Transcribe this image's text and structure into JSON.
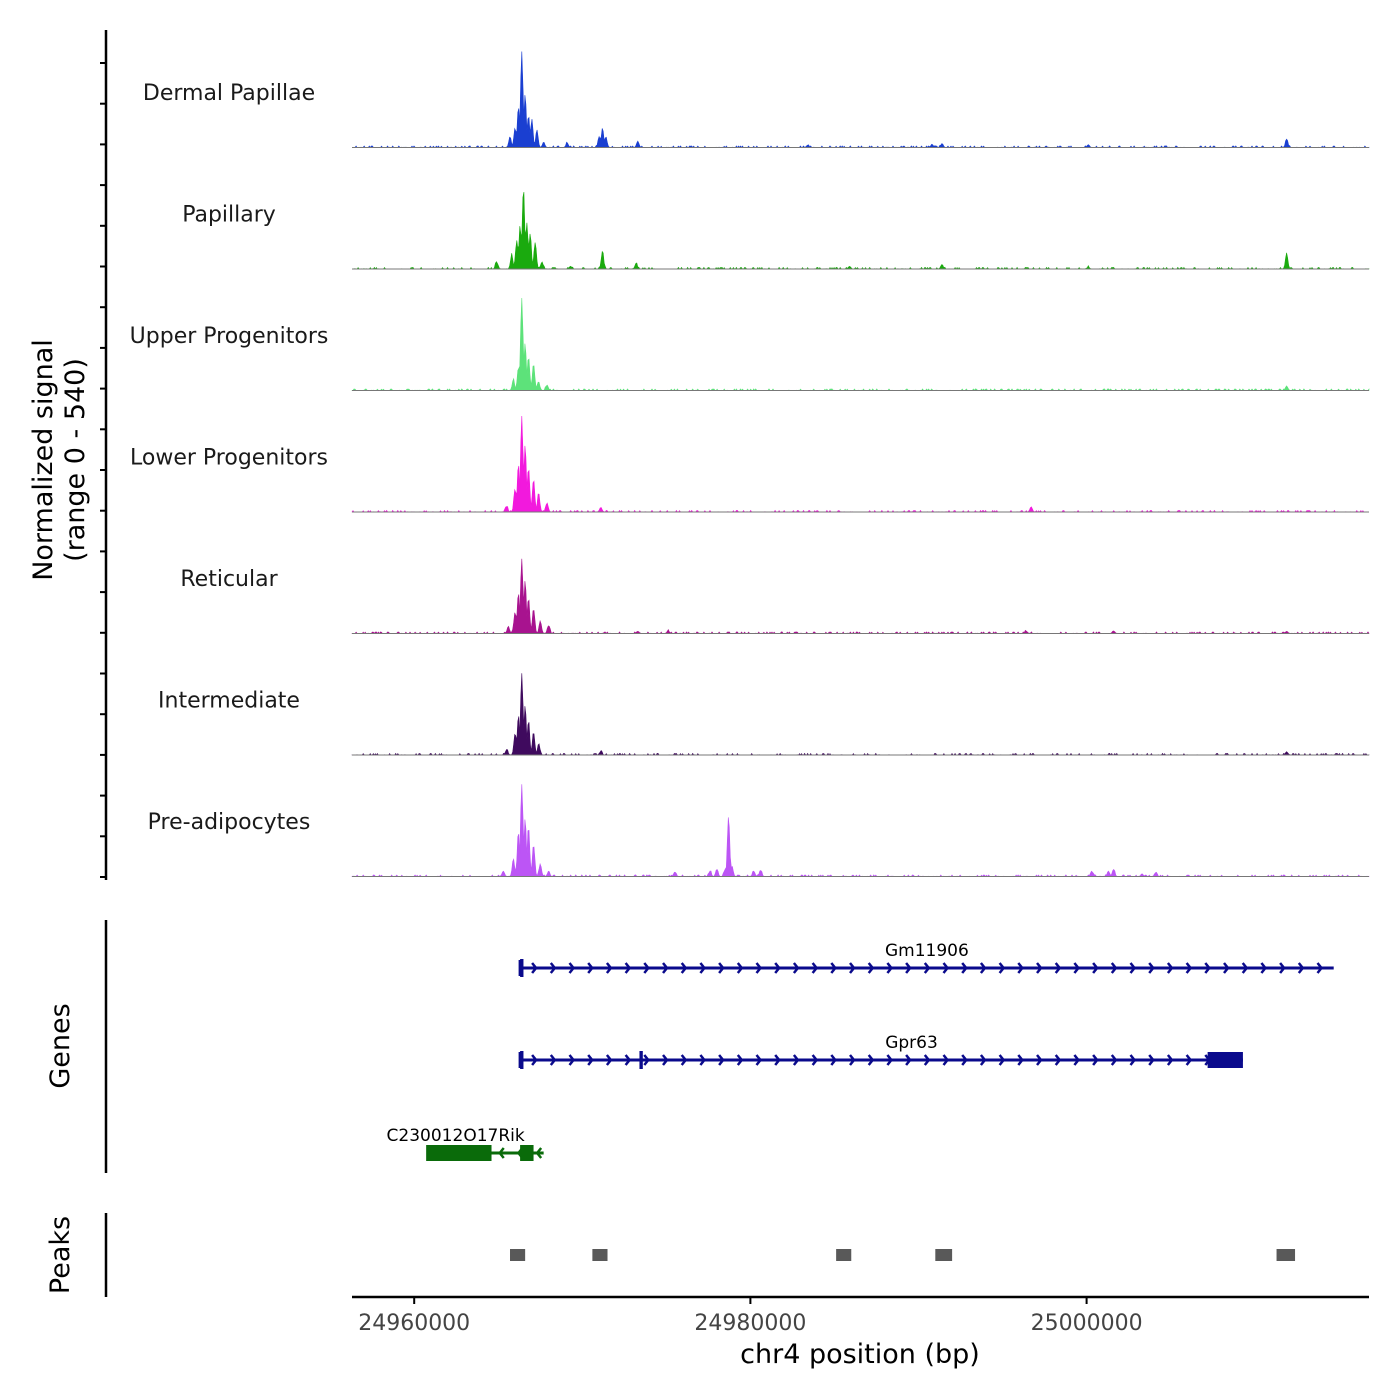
{
  "chart_data": {
    "type": "area",
    "title": "",
    "chromosome": "chr4",
    "xlabel": "chr4 position (bp)",
    "xlim": [
      24956300,
      25016800
    ],
    "xticks": [
      {
        "value": 24960000,
        "label": "24960000"
      },
      {
        "value": 24980000,
        "label": "24980000"
      },
      {
        "value": 25000000,
        "label": "25000000"
      }
    ],
    "signal_panel": {
      "ylabel_line1": "Normalized signal",
      "ylabel_line2": "(range 0 - 540)",
      "ylim": [
        0,
        540
      ],
      "tracks": [
        {
          "name": "Dermal Papillae",
          "color": "#1a3fd1",
          "peaks": [
            {
              "x": 24965700,
              "y": 60
            },
            {
              "x": 24966000,
              "y": 110
            },
            {
              "x": 24966200,
              "y": 230
            },
            {
              "x": 24966400,
              "y": 540
            },
            {
              "x": 24966600,
              "y": 300
            },
            {
              "x": 24966800,
              "y": 180
            },
            {
              "x": 24967000,
              "y": 160
            },
            {
              "x": 24967300,
              "y": 100
            },
            {
              "x": 24967700,
              "y": 30
            },
            {
              "x": 24969100,
              "y": 25
            },
            {
              "x": 24971000,
              "y": 60
            },
            {
              "x": 24971200,
              "y": 110
            },
            {
              "x": 24971400,
              "y": 60
            },
            {
              "x": 24973300,
              "y": 35
            },
            {
              "x": 24983400,
              "y": 12
            },
            {
              "x": 24990800,
              "y": 18
            },
            {
              "x": 24991400,
              "y": 22
            },
            {
              "x": 25000100,
              "y": 15
            },
            {
              "x": 25011900,
              "y": 45
            }
          ]
        },
        {
          "name": "Papillary",
          "color": "#1aaa0e",
          "peaks": [
            {
              "x": 24964900,
              "y": 40
            },
            {
              "x": 24965800,
              "y": 80
            },
            {
              "x": 24966100,
              "y": 160
            },
            {
              "x": 24966300,
              "y": 240
            },
            {
              "x": 24966500,
              "y": 460
            },
            {
              "x": 24966700,
              "y": 260
            },
            {
              "x": 24966900,
              "y": 200
            },
            {
              "x": 24967200,
              "y": 150
            },
            {
              "x": 24967600,
              "y": 40
            },
            {
              "x": 24969300,
              "y": 15
            },
            {
              "x": 24971200,
              "y": 100
            },
            {
              "x": 24973200,
              "y": 30
            },
            {
              "x": 24985900,
              "y": 15
            },
            {
              "x": 24991400,
              "y": 25
            },
            {
              "x": 25000100,
              "y": 10
            },
            {
              "x": 25011900,
              "y": 90
            }
          ]
        },
        {
          "name": "Upper Progenitors",
          "color": "#5de27a",
          "peaks": [
            {
              "x": 24965900,
              "y": 60
            },
            {
              "x": 24966200,
              "y": 130
            },
            {
              "x": 24966400,
              "y": 520
            },
            {
              "x": 24966600,
              "y": 260
            },
            {
              "x": 24966800,
              "y": 190
            },
            {
              "x": 24967100,
              "y": 150
            },
            {
              "x": 24967400,
              "y": 50
            },
            {
              "x": 24967900,
              "y": 30
            },
            {
              "x": 25011900,
              "y": 25
            }
          ]
        },
        {
          "name": "Lower Progenitors",
          "color": "#f219dd",
          "peaks": [
            {
              "x": 24965500,
              "y": 30
            },
            {
              "x": 24966000,
              "y": 130
            },
            {
              "x": 24966200,
              "y": 270
            },
            {
              "x": 24966400,
              "y": 540
            },
            {
              "x": 24966600,
              "y": 380
            },
            {
              "x": 24966800,
              "y": 250
            },
            {
              "x": 24967100,
              "y": 180
            },
            {
              "x": 24967400,
              "y": 110
            },
            {
              "x": 24967900,
              "y": 50
            },
            {
              "x": 24971100,
              "y": 25
            },
            {
              "x": 24996700,
              "y": 28
            }
          ]
        },
        {
          "name": "Reticular",
          "color": "#a8138f",
          "peaks": [
            {
              "x": 24965600,
              "y": 40
            },
            {
              "x": 24966000,
              "y": 120
            },
            {
              "x": 24966200,
              "y": 230
            },
            {
              "x": 24966400,
              "y": 420
            },
            {
              "x": 24966600,
              "y": 300
            },
            {
              "x": 24966800,
              "y": 200
            },
            {
              "x": 24967100,
              "y": 140
            },
            {
              "x": 24967500,
              "y": 70
            },
            {
              "x": 24968000,
              "y": 45
            },
            {
              "x": 24973300,
              "y": 12
            },
            {
              "x": 24975100,
              "y": 15
            },
            {
              "x": 24996400,
              "y": 12
            },
            {
              "x": 25001600,
              "y": 14
            },
            {
              "x": 25011900,
              "y": 12
            }
          ]
        },
        {
          "name": "Intermediate",
          "color": "#3f0a5e",
          "peaks": [
            {
              "x": 24965500,
              "y": 30
            },
            {
              "x": 24966000,
              "y": 120
            },
            {
              "x": 24966200,
              "y": 220
            },
            {
              "x": 24966400,
              "y": 460
            },
            {
              "x": 24966600,
              "y": 280
            },
            {
              "x": 24966800,
              "y": 190
            },
            {
              "x": 24967100,
              "y": 130
            },
            {
              "x": 24967400,
              "y": 60
            },
            {
              "x": 24971100,
              "y": 18
            },
            {
              "x": 25011900,
              "y": 18
            }
          ]
        },
        {
          "name": "Pre-adipocytes",
          "color": "#bc55f5",
          "peaks": [
            {
              "x": 24965300,
              "y": 30
            },
            {
              "x": 24965900,
              "y": 100
            },
            {
              "x": 24966200,
              "y": 250
            },
            {
              "x": 24966400,
              "y": 520
            },
            {
              "x": 24966600,
              "y": 320
            },
            {
              "x": 24966800,
              "y": 280
            },
            {
              "x": 24967100,
              "y": 180
            },
            {
              "x": 24967500,
              "y": 70
            },
            {
              "x": 24968000,
              "y": 30
            },
            {
              "x": 24975500,
              "y": 25
            },
            {
              "x": 24977600,
              "y": 30
            },
            {
              "x": 24978000,
              "y": 40
            },
            {
              "x": 24978500,
              "y": 40
            },
            {
              "x": 24978700,
              "y": 340
            },
            {
              "x": 24978900,
              "y": 60
            },
            {
              "x": 24980200,
              "y": 30
            },
            {
              "x": 24980600,
              "y": 35
            },
            {
              "x": 25000300,
              "y": 30
            },
            {
              "x": 25001300,
              "y": 30
            },
            {
              "x": 25001600,
              "y": 40
            },
            {
              "x": 25003300,
              "y": 15
            },
            {
              "x": 25004100,
              "y": 20
            }
          ]
        }
      ]
    },
    "genes_panel": {
      "label": "Genes",
      "genes": [
        {
          "name": "Gm11906",
          "strand": "+",
          "start": 24966300,
          "end": 25014700,
          "color": "#0a0a8c",
          "exons": [
            {
              "start": 24966300,
              "end": 24966500
            }
          ]
        },
        {
          "name": "Gpr63",
          "strand": "+",
          "start": 24966300,
          "end": 25009300,
          "color": "#0a0a8c",
          "exons": [
            {
              "start": 24966300,
              "end": 24966500
            },
            {
              "start": 24973400,
              "end": 24973600
            },
            {
              "start": 25007200,
              "end": 25009300
            }
          ]
        },
        {
          "name": "C230012O17Rik",
          "strand": "-",
          "start": 24960800,
          "end": 24967700,
          "color": "#0a6b0a",
          "exons": [
            {
              "start": 24960800,
              "end": 24964600
            },
            {
              "start": 24966300,
              "end": 24967100
            }
          ]
        }
      ]
    },
    "peaks_panel": {
      "label": "Peaks",
      "regions": [
        {
          "start": 24965700,
          "end": 24966600
        },
        {
          "start": 24970600,
          "end": 24971500
        },
        {
          "start": 24985100,
          "end": 24986000
        },
        {
          "start": 24991000,
          "end": 24992000
        },
        {
          "start": 25011300,
          "end": 25012400
        }
      ]
    }
  }
}
